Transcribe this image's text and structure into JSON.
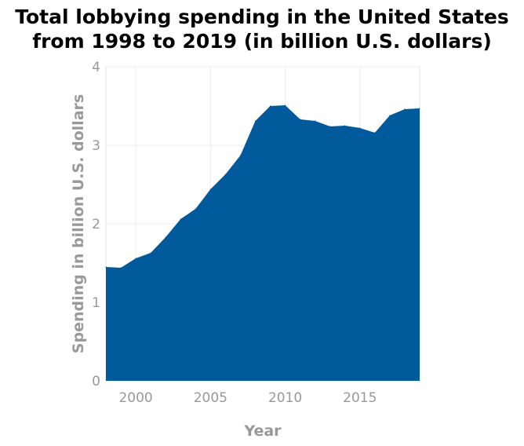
{
  "chart_data": {
    "type": "area",
    "title_lines": [
      "Total lobbying spending in the United States",
      "from 1998 to 2019 (in billion U.S. dollars)"
    ],
    "xlabel": "Year",
    "ylabel": "Spending in billion U.S. dollars",
    "xlim": [
      1998,
      2019
    ],
    "ylim": [
      0,
      4
    ],
    "x_ticks": [
      2000,
      2005,
      2010,
      2015
    ],
    "y_ticks": [
      0,
      1,
      2,
      3,
      4
    ],
    "grid": true,
    "series": [
      {
        "name": "Spending",
        "color": "#005a9c",
        "x": [
          1998,
          1999,
          2000,
          2001,
          2002,
          2003,
          2004,
          2005,
          2006,
          2007,
          2008,
          2009,
          2010,
          2011,
          2012,
          2013,
          2014,
          2015,
          2016,
          2017,
          2018,
          2019
        ],
        "y": [
          1.45,
          1.44,
          1.56,
          1.63,
          1.83,
          2.06,
          2.19,
          2.44,
          2.63,
          2.87,
          3.31,
          3.5,
          3.51,
          3.33,
          3.31,
          3.24,
          3.25,
          3.22,
          3.16,
          3.38,
          3.46,
          3.47
        ]
      }
    ]
  }
}
